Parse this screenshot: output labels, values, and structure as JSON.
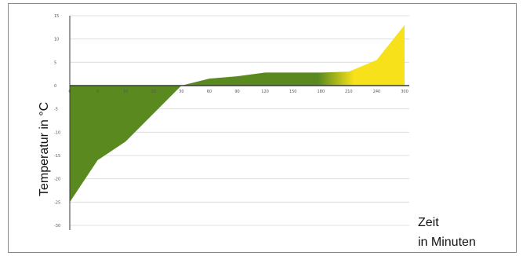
{
  "chart_data": {
    "type": "area",
    "title": "",
    "ylabel": "Temperatur in °C",
    "xlabel_line1": "Zeit",
    "xlabel_line2": "in Minuten",
    "x_tick_labels": [
      "0",
      "5",
      "10",
      "20",
      "30",
      "60",
      "90",
      "120",
      "150",
      "180",
      "210",
      "240",
      "300"
    ],
    "x_positions": [
      0,
      1,
      2,
      3,
      4,
      5,
      6,
      7,
      8,
      9,
      10,
      11,
      12
    ],
    "y_tick_values": [
      15,
      10,
      5,
      0,
      -5,
      -10,
      -15,
      -20,
      -25,
      -30
    ],
    "ylim": [
      -30,
      15
    ],
    "grid": true,
    "series": [
      {
        "values": [
          -25,
          -16,
          -12,
          -6,
          0,
          1.5,
          2,
          2.8,
          2.8,
          2.8,
          3,
          5.5,
          13
        ]
      }
    ],
    "colors": {
      "negative_fill": "#5a8a1f",
      "positive_fill": "#5a8a1f",
      "hot_fill": "#f6e11a",
      "axis": "#3a3a3a",
      "grid": "#d8d8d8",
      "frame": "#8a8a8a"
    }
  }
}
